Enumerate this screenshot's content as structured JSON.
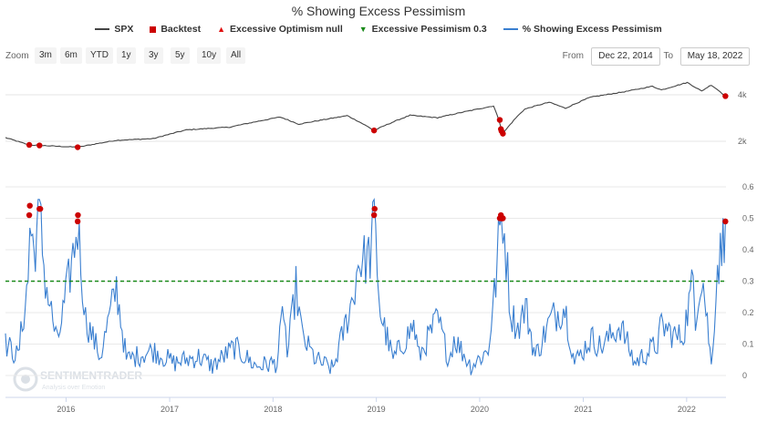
{
  "title": "% Showing Excess Pessimism",
  "legend": [
    {
      "label": "SPX",
      "color": "#444444",
      "symbol": "line"
    },
    {
      "label": "Backtest",
      "color": "#cc0000",
      "symbol": "square"
    },
    {
      "label": "Excessive Optimism null",
      "color": "#e01010",
      "symbol": "triangle-up"
    },
    {
      "label": "Excessive Pessimism 0.3",
      "color": "#1a8a1a",
      "symbol": "triangle-down"
    },
    {
      "label": "% Showing Excess Pessimism",
      "color": "#3a7fd0",
      "symbol": "line"
    }
  ],
  "toolbar": {
    "zoom_label": "Zoom",
    "zoom_buttons": [
      "3m",
      "6m",
      "YTD",
      "1y",
      "3y",
      "5y",
      "10y",
      "All"
    ],
    "from_label": "From",
    "from_value": "Dec 22, 2014",
    "to_label": "To",
    "to_value": "May 18, 2022"
  },
  "watermark": {
    "name": "SENTIMENTRADER",
    "tagline": "Analysis over Emotion"
  },
  "colors": {
    "spx": "#444444",
    "pessimism": "#3a7fd0",
    "threshold": "#1a8a1a",
    "signal": "#cc0000"
  },
  "chart_data": [
    {
      "type": "line",
      "name": "SPX",
      "scale": "log",
      "yticks": [
        "2k",
        "4k"
      ],
      "x": [
        "2015-06-01",
        "2015-08-24",
        "2015-09-29",
        "2016-02-11",
        "2016-06-27",
        "2016-11-04",
        "2017-03-01",
        "2017-08-01",
        "2018-01-26",
        "2018-04-02",
        "2018-09-20",
        "2018-12-24",
        "2019-04-30",
        "2019-08-05",
        "2020-02-19",
        "2020-03-23",
        "2020-06-08",
        "2020-09-02",
        "2020-10-30",
        "2021-01-25",
        "2021-06-01",
        "2021-09-02",
        "2021-10-04",
        "2022-01-03",
        "2022-02-23",
        "2022-03-29",
        "2022-05-18"
      ],
      "y": [
        2110,
        1890,
        1880,
        1830,
        2030,
        2080,
        2370,
        2470,
        2870,
        2580,
        2930,
        2350,
        2945,
        2840,
        3386,
        2240,
        3230,
        3580,
        3270,
        3850,
        4200,
        4540,
        4300,
        4800,
        4225,
        4630,
        3920
      ]
    },
    {
      "type": "line",
      "name": "% Showing Excess Pessimism",
      "ylim": [
        0,
        0.6
      ],
      "yticks": [
        "0",
        "0.1",
        "0.2",
        "0.3",
        "0.4",
        "0.5",
        "0.6"
      ],
      "xlabels": [
        "2016",
        "2017",
        "2018",
        "2019",
        "2020",
        "2021",
        "2022"
      ],
      "x": [
        "2015-06-01",
        "2015-07-15",
        "2015-08-20",
        "2015-08-26",
        "2015-09-10",
        "2015-09-29",
        "2015-10-20",
        "2015-12-01",
        "2016-01-20",
        "2016-02-11",
        "2016-03-10",
        "2016-05-01",
        "2016-06-27",
        "2016-08-01",
        "2016-11-04",
        "2017-01-15",
        "2017-04-13",
        "2017-06-01",
        "2017-08-18",
        "2017-11-01",
        "2018-01-15",
        "2018-02-08",
        "2018-02-20",
        "2018-03-23",
        "2018-04-15",
        "2018-06-01",
        "2018-08-01",
        "2018-10-11",
        "2018-10-29",
        "2018-12-10",
        "2018-12-24",
        "2019-01-15",
        "2019-03-01",
        "2019-05-13",
        "2019-06-01",
        "2019-08-05",
        "2019-09-15",
        "2019-10-02",
        "2019-12-01",
        "2020-01-31",
        "2020-02-27",
        "2020-03-12",
        "2020-03-23",
        "2020-04-20",
        "2020-05-15",
        "2020-06-11",
        "2020-07-15",
        "2020-09-08",
        "2020-10-28",
        "2020-12-01",
        "2021-01-29",
        "2021-03-04",
        "2021-05-12",
        "2021-07-01",
        "2021-09-20",
        "2021-10-04",
        "2021-11-30",
        "2021-12-20",
        "2022-01-24",
        "2022-02-01",
        "2022-02-24",
        "2022-03-15",
        "2022-03-29",
        "2022-04-20",
        "2022-05-05",
        "2022-05-18"
      ],
      "y": [
        0.1,
        0.06,
        0.3,
        0.48,
        0.39,
        0.52,
        0.3,
        0.1,
        0.35,
        0.48,
        0.18,
        0.06,
        0.28,
        0.05,
        0.08,
        0.04,
        0.06,
        0.03,
        0.09,
        0.03,
        0.04,
        0.22,
        0.06,
        0.28,
        0.12,
        0.05,
        0.02,
        0.25,
        0.36,
        0.38,
        0.5,
        0.2,
        0.05,
        0.16,
        0.06,
        0.18,
        0.05,
        0.12,
        0.03,
        0.08,
        0.3,
        0.47,
        0.51,
        0.2,
        0.15,
        0.22,
        0.06,
        0.18,
        0.22,
        0.04,
        0.12,
        0.09,
        0.16,
        0.04,
        0.1,
        0.16,
        0.12,
        0.13,
        0.3,
        0.2,
        0.33,
        0.17,
        0.03,
        0.35,
        0.4,
        0.49
      ]
    },
    {
      "type": "scatter",
      "name": "Backtest",
      "panel": "pessimism",
      "x": [
        "2015-08-24",
        "2015-08-26",
        "2015-09-29",
        "2015-10-02",
        "2016-02-11",
        "2016-02-12",
        "2018-12-24",
        "2018-12-26",
        "2020-03-12",
        "2020-03-16",
        "2020-03-18",
        "2020-03-20",
        "2020-03-23",
        "2022-05-18"
      ],
      "y": [
        0.51,
        0.54,
        0.53,
        0.53,
        0.49,
        0.51,
        0.51,
        0.53,
        0.5,
        0.51,
        0.5,
        0.5,
        0.5,
        0.49
      ]
    },
    {
      "type": "scatter",
      "name": "Backtest",
      "panel": "spx",
      "x": [
        "2015-08-24",
        "2015-09-29",
        "2016-02-11",
        "2018-12-24",
        "2020-03-12",
        "2020-03-16",
        "2020-03-18",
        "2020-03-23",
        "2022-05-18"
      ],
      "y": [
        1895,
        1880,
        1830,
        2350,
        2750,
        2400,
        2330,
        2240,
        3920
      ]
    },
    {
      "type": "line",
      "name": "Excessive Pessimism",
      "value": 0.3
    }
  ]
}
